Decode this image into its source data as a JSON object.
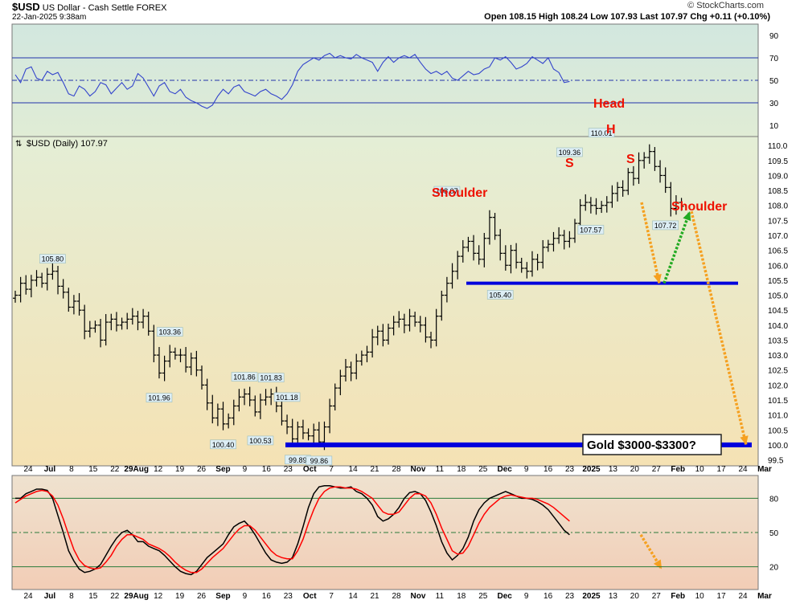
{
  "header": {
    "symbol": "$USD",
    "name": "US Dollar - Cash Settle",
    "exchange": "FOREX",
    "datetime": "22-Jan-2025 9:38am",
    "watermark": "© StockCharts.com",
    "ohlc": "Open 108.15  High 108.24  Low 107.93  Last 107.97  Chg +0.11 (+0.10%)"
  },
  "chart_data": [
    {
      "panel": "rsi",
      "type": "line",
      "yticks": [
        90,
        70,
        50,
        30,
        10
      ],
      "ylim": [
        0,
        100
      ],
      "ref_lines": [
        70,
        50,
        30
      ],
      "series": [
        {
          "color": "#3344cc",
          "values": [
            55,
            48,
            60,
            62,
            52,
            50,
            58,
            55,
            57,
            48,
            38,
            36,
            45,
            42,
            36,
            40,
            48,
            46,
            38,
            43,
            48,
            42,
            45,
            56,
            52,
            44,
            36,
            45,
            48,
            40,
            38,
            42,
            35,
            32,
            30,
            27,
            25,
            28,
            36,
            42,
            38,
            44,
            46,
            40,
            38,
            36,
            40,
            42,
            38,
            36,
            33,
            38,
            46,
            58,
            64,
            67,
            70,
            68,
            72,
            74,
            70,
            72,
            70,
            69,
            73,
            70,
            68,
            66,
            58,
            66,
            71,
            66,
            70,
            72,
            70,
            73,
            66,
            60,
            56,
            58,
            55,
            58,
            52,
            50,
            54,
            58,
            55,
            56,
            60,
            62,
            70,
            68,
            71,
            66,
            60,
            62,
            65,
            71,
            68,
            65,
            70,
            60,
            57,
            48,
            49
          ]
        }
      ]
    },
    {
      "panel": "price",
      "type": "ohlc",
      "title": "$USD (Daily) 107.97",
      "yticks": [
        110.0,
        109.5,
        109.0,
        108.5,
        108.0,
        107.5,
        107.0,
        106.5,
        106.0,
        105.5,
        105.0,
        104.5,
        104.0,
        103.5,
        103.0,
        102.5,
        102.0,
        101.5,
        101.0,
        100.5,
        100.0,
        99.5
      ],
      "ylim": [
        99.3,
        110.3
      ],
      "closes": [
        105.0,
        105.4,
        105.2,
        105.5,
        105.6,
        105.4,
        105.7,
        105.8,
        105.3,
        105.1,
        104.6,
        104.8,
        104.5,
        103.8,
        103.9,
        104.0,
        103.5,
        104.1,
        104.2,
        104.0,
        104.1,
        104.2,
        104.3,
        104.1,
        104.3,
        103.8,
        103.0,
        102.4,
        102.8,
        103.1,
        103.0,
        103.0,
        102.6,
        102.9,
        102.5,
        102.0,
        101.4,
        100.9,
        101.2,
        100.7,
        100.9,
        101.3,
        101.6,
        101.7,
        101.5,
        101.1,
        101.5,
        101.6,
        101.7,
        101.3,
        100.8,
        100.6,
        100.2,
        100.6,
        100.4,
        100.3,
        100.5,
        100.1,
        100.6,
        101.3,
        101.9,
        102.3,
        102.6,
        102.4,
        102.8,
        103.0,
        103.1,
        103.6,
        103.8,
        103.5,
        103.9,
        104.1,
        104.2,
        104.0,
        104.3,
        104.1,
        104.0,
        103.6,
        103.5,
        104.3,
        105.0,
        105.4,
        105.8,
        106.3,
        106.6,
        106.8,
        106.4,
        106.2,
        106.9,
        107.6,
        107.0,
        106.4,
        106.0,
        106.5,
        106.1,
        105.9,
        105.8,
        106.2,
        106.1,
        106.6,
        106.7,
        106.9,
        107.0,
        106.8,
        106.9,
        107.4,
        108.0,
        108.1,
        108.0,
        107.9,
        108.0,
        108.1,
        108.4,
        108.6,
        108.5,
        109.1,
        108.9,
        109.5,
        109.6,
        109.8,
        109.3,
        109.0,
        108.6,
        107.9,
        108.1,
        107.97
      ],
      "y_labels": [
        "105.80",
        "103.36",
        "101.96",
        "100.40",
        "101.86",
        "100.53",
        "101.83",
        "101.18",
        "99.89",
        "99.86",
        "108.07",
        "105.40",
        "109.36",
        "110.01",
        "107.57",
        "107.72"
      ],
      "annotations": [
        "Shoulder",
        "Head",
        "H",
        "S",
        "S",
        "Shoulder",
        "Gold $3000-$3300?"
      ],
      "support_levels": [
        105.4,
        100.0
      ],
      "projection": [
        108.1,
        105.4,
        107.8,
        100.0
      ]
    },
    {
      "panel": "stochastic",
      "type": "line",
      "yticks": [
        80,
        50,
        20
      ],
      "ylim": [
        0,
        100
      ],
      "ref_lines": [
        80,
        50,
        20
      ],
      "series": [
        {
          "color": "#000000",
          "values": [
            80,
            80,
            84,
            86,
            88,
            88,
            87,
            80,
            65,
            50,
            34,
            25,
            18,
            15,
            16,
            18,
            22,
            30,
            38,
            45,
            50,
            52,
            48,
            42,
            42,
            38,
            36,
            34,
            30,
            25,
            20,
            16,
            14,
            13,
            16,
            22,
            28,
            32,
            36,
            40,
            48,
            55,
            58,
            60,
            55,
            48,
            40,
            32,
            26,
            24,
            23,
            24,
            28,
            40,
            55,
            72,
            84,
            90,
            91,
            91,
            90,
            89,
            89,
            90,
            86,
            84,
            80,
            74,
            64,
            60,
            62,
            66,
            72,
            80,
            85,
            86,
            84,
            78,
            68,
            56,
            42,
            32,
            26,
            30,
            36,
            46,
            60,
            70,
            76,
            80,
            82,
            84,
            86,
            84,
            82,
            80,
            80,
            79,
            77,
            74,
            70,
            64,
            58,
            52,
            48
          ]
        },
        {
          "color": "#ff0000",
          "values": [
            76,
            79,
            82,
            84,
            86,
            87,
            86,
            82,
            74,
            62,
            48,
            35,
            26,
            21,
            19,
            18,
            19,
            24,
            30,
            38,
            44,
            48,
            48,
            46,
            44,
            40,
            38,
            36,
            33,
            29,
            24,
            20,
            17,
            15,
            15,
            18,
            23,
            28,
            32,
            36,
            42,
            48,
            53,
            56,
            56,
            52,
            46,
            40,
            34,
            30,
            28,
            27,
            27,
            34,
            44,
            58,
            70,
            80,
            86,
            89,
            90,
            90,
            89,
            89,
            88,
            86,
            83,
            80,
            74,
            68,
            66,
            66,
            68,
            74,
            80,
            84,
            84,
            82,
            76,
            66,
            54,
            44,
            34,
            31,
            32,
            38,
            48,
            58,
            66,
            72,
            76,
            80,
            82,
            83,
            82,
            81,
            80,
            80,
            79,
            77,
            75,
            72,
            68,
            64,
            60
          ]
        }
      ]
    }
  ],
  "x_axis": {
    "labels": [
      "24",
      "Jul",
      "8",
      "15",
      "22",
      "29Aug",
      "12",
      "19",
      "26",
      "Sep",
      "9",
      "16",
      "23",
      "Oct",
      "7",
      "14",
      "21",
      "28",
      "Nov",
      "11",
      "18",
      "25",
      "Dec",
      "9",
      "16",
      "23",
      "2025",
      "13",
      "20",
      "27",
      "Feb",
      "10",
      "17",
      "24",
      "Mar"
    ]
  },
  "colors": {
    "rsi_bg_top": "#d2e7df",
    "rsi_bg_bottom": "#e0ecd5",
    "price_bg_top": "#e4eed6",
    "price_bg_bottom": "#f5e2b4",
    "stoch_bg_top": "#efe2cf",
    "stoch_bg_bottom": "#f2cdb6",
    "rsi_line": "#3344cc",
    "support_line": "#0000dd",
    "annotation_red": "#ee1100",
    "arrow_orange": "#f5a020",
    "arrow_green": "#22aa22",
    "label_box_bg": "#ddeef5"
  }
}
